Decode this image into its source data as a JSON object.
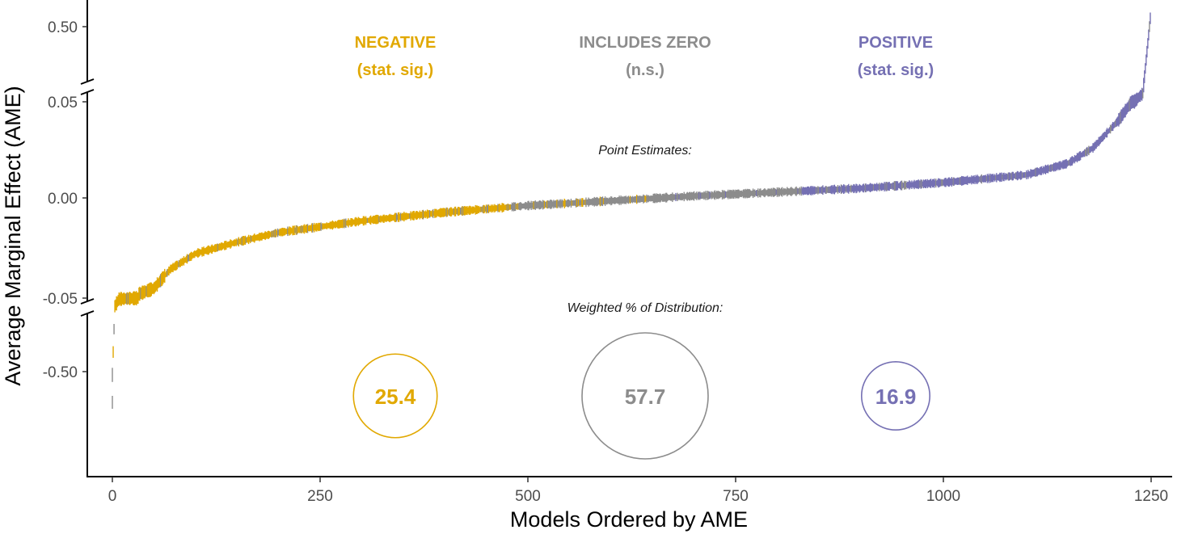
{
  "chart_data": {
    "type": "scatter",
    "title": "",
    "xlabel": "Models Ordered by AME",
    "ylabel": "Average Marginal Effect (AME)",
    "xlim": [
      0,
      1250
    ],
    "x_ticks": [
      0,
      250,
      500,
      750,
      1000,
      1250
    ],
    "y_ticks": [
      "0.50",
      "0.05",
      "0.00",
      "-0.05",
      "-0.50"
    ],
    "y_axis_breaks": [
      "between 0.05 and 0.50",
      "between -0.05 and -0.50"
    ],
    "colors": {
      "negative": "#E1A800",
      "includes_zero": "#8C8C8C",
      "positive": "#7570B3"
    },
    "categories": [
      {
        "key": "negative",
        "name": "NEGATIVE",
        "sub": "(stat. sig.)",
        "weighted_pct": 25.4
      },
      {
        "key": "includes_zero",
        "name": "INCLUDES ZERO",
        "sub": "(n.s.)",
        "weighted_pct": 57.7
      },
      {
        "key": "positive",
        "name": "POSITIVE",
        "sub": "(stat. sig.)",
        "weighted_pct": 16.9
      }
    ],
    "annotations": {
      "point_estimates": "Point Estimates:",
      "weighted_distribution": "Weighted % of Distribution:"
    },
    "curve_points": [
      {
        "rank": 0,
        "ame": -0.52
      },
      {
        "rank": 3,
        "ame": -0.1
      },
      {
        "rank": 8,
        "ame": -0.056
      },
      {
        "rank": 20,
        "ame": -0.052
      },
      {
        "rank": 50,
        "ame": -0.047
      },
      {
        "rank": 70,
        "ame": -0.037
      },
      {
        "rank": 100,
        "ame": -0.029
      },
      {
        "rank": 150,
        "ame": -0.023
      },
      {
        "rank": 200,
        "ame": -0.018
      },
      {
        "rank": 300,
        "ame": -0.012
      },
      {
        "rank": 400,
        "ame": -0.0075
      },
      {
        "rank": 500,
        "ame": -0.004
      },
      {
        "rank": 600,
        "ame": -0.0015
      },
      {
        "rank": 700,
        "ame": 0.001
      },
      {
        "rank": 800,
        "ame": 0.003
      },
      {
        "rank": 900,
        "ame": 0.005
      },
      {
        "rank": 1000,
        "ame": 0.008
      },
      {
        "rank": 1100,
        "ame": 0.012
      },
      {
        "rank": 1150,
        "ame": 0.018
      },
      {
        "rank": 1180,
        "ame": 0.026
      },
      {
        "rank": 1210,
        "ame": 0.04
      },
      {
        "rank": 1230,
        "ame": 0.052
      },
      {
        "rank": 1240,
        "ame": 0.1
      },
      {
        "rank": 1249,
        "ame": 0.55
      }
    ],
    "segments": [
      {
        "from": 0,
        "to": 480,
        "class": "negative",
        "mix": [
          [
            "negative",
            0.88
          ],
          [
            "includes_zero",
            0.12
          ]
        ]
      },
      {
        "from": 480,
        "to": 660,
        "class": "includes_zero",
        "mix": [
          [
            "includes_zero",
            0.9
          ],
          [
            "negative",
            0.1
          ]
        ]
      },
      {
        "from": 660,
        "to": 830,
        "class": "includes_zero",
        "mix": [
          [
            "includes_zero",
            0.95
          ],
          [
            "positive",
            0.05
          ]
        ]
      },
      {
        "from": 830,
        "to": 1250,
        "class": "positive",
        "mix": [
          [
            "positive",
            0.85
          ],
          [
            "includes_zero",
            0.15
          ]
        ]
      }
    ]
  }
}
